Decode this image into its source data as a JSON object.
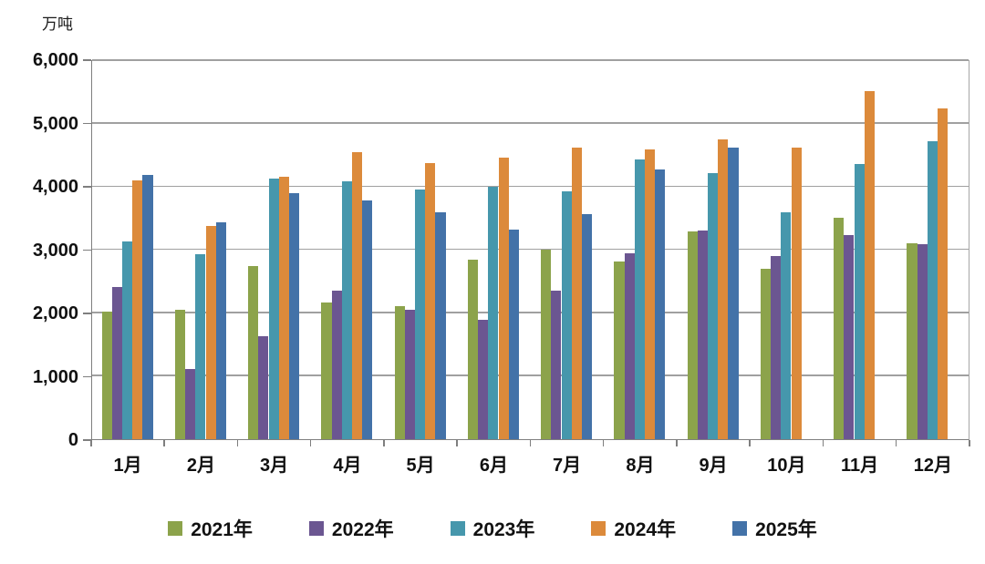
{
  "chart_data": {
    "type": "bar",
    "title": "",
    "ylabel": "万吨",
    "xlabel": "",
    "categories": [
      "1月",
      "2月",
      "3月",
      "4月",
      "5月",
      "6月",
      "7月",
      "8月",
      "9月",
      "10月",
      "11月",
      "12月"
    ],
    "series": [
      {
        "name": "2021年",
        "color": "#8CA34B",
        "values": [
          2020,
          2050,
          2730,
          2160,
          2100,
          2830,
          3000,
          2800,
          3280,
          2690,
          3500,
          3090
        ]
      },
      {
        "name": "2022年",
        "color": "#6B5691",
        "values": [
          2400,
          1110,
          1630,
          2350,
          2050,
          1890,
          2350,
          2930,
          3300,
          2890,
          3220,
          3080
        ]
      },
      {
        "name": "2023年",
        "color": "#4697AC",
        "values": [
          3130,
          2920,
          4110,
          4070,
          3940,
          3990,
          3910,
          4420,
          4200,
          3590,
          4340,
          4710
        ]
      },
      {
        "name": "2024年",
        "color": "#DC8A3B",
        "values": [
          4080,
          3370,
          4140,
          4530,
          4360,
          4450,
          4610,
          4580,
          4740,
          4610,
          5490,
          5230
        ]
      },
      {
        "name": "2025年",
        "color": "#4372A8",
        "values": [
          4180,
          3430,
          3880,
          3770,
          3590,
          3310,
          3560,
          4260,
          4600,
          null,
          null,
          null
        ]
      }
    ],
    "ylim": [
      0,
      6000
    ],
    "y_ticks": [
      "0",
      "1,000",
      "2,000",
      "3,000",
      "4,000",
      "5,000",
      "6,000"
    ],
    "grid": true,
    "gridline_color": "#a0a0a0",
    "axis_color": "#7f7f7f",
    "legend_position": "bottom"
  }
}
